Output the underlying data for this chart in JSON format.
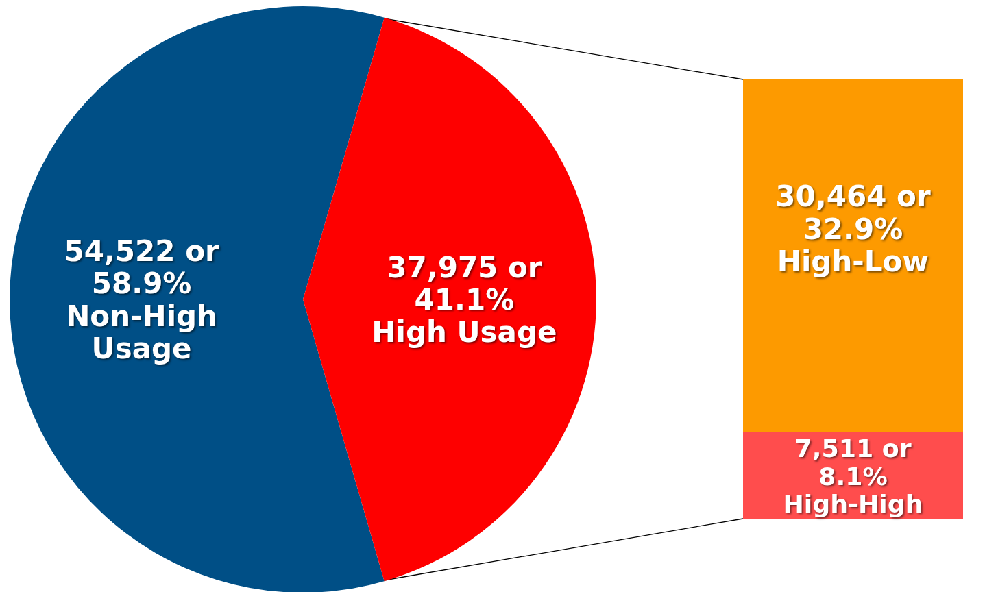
{
  "chart_data": [
    {
      "type": "pie",
      "categories": [
        "Non-High Usage",
        "High Usage"
      ],
      "values": [
        54522,
        37975
      ],
      "colors": [
        "#004f86",
        "#fe0000"
      ],
      "value_labels": [
        "54,522 or 58.9%",
        "37,975 or 41.1%"
      ]
    },
    {
      "type": "bar",
      "stacked": true,
      "categories": [
        null
      ],
      "series": [
        {
          "name": "High-High",
          "color": "#ff4d4d",
          "values": [
            7511
          ],
          "value_labels": [
            "7,511 or 8.1%"
          ]
        },
        {
          "name": "High-Low",
          "color": "#fd9a00",
          "values": [
            30464
          ],
          "value_labels": [
            "30,464 or 32.9%"
          ]
        }
      ]
    }
  ]
}
